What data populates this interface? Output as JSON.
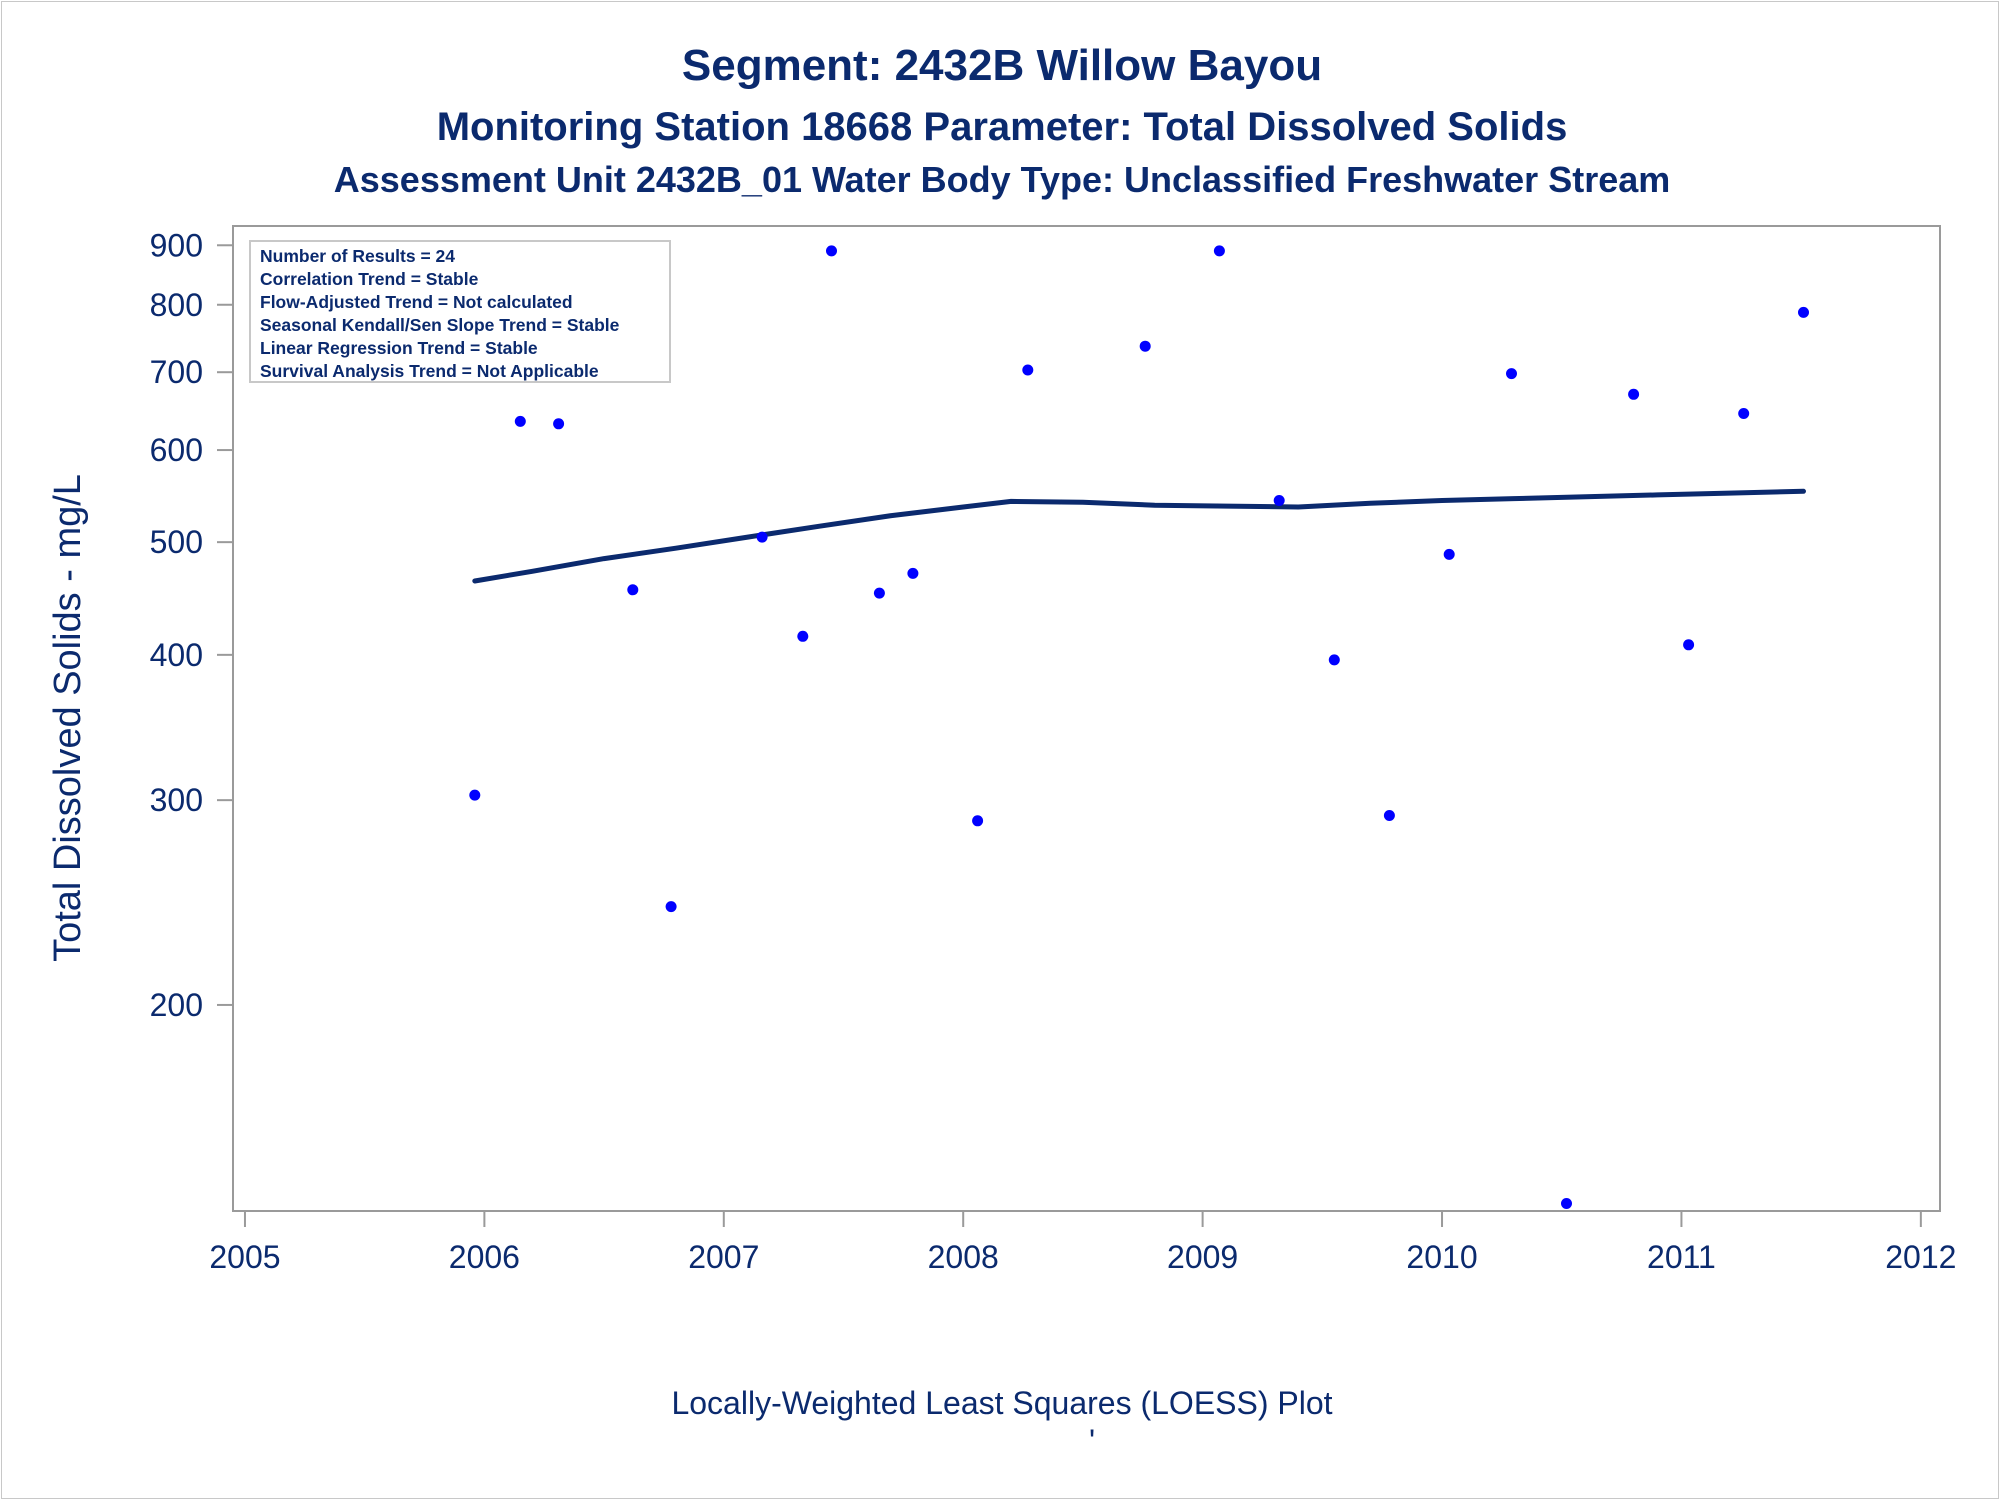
{
  "chart_data": {
    "type": "scatter",
    "title": "Segment: 2432B  Willow Bayou",
    "subtitle_1": "Monitoring Station 18668 Parameter: Total Dissolved Solids",
    "subtitle_2": "Assessment Unit 2432B_01   Water Body Type: Unclassified Freshwater Stream",
    "ylabel": "Total Dissolved Solids - mg/L",
    "xlabel": "",
    "footnote": "Locally-Weighted Least Squares (LOESS) Plot",
    "footnote_mark": "'",
    "y_scale": "log",
    "ylim": [
      133,
      935
    ],
    "xlim": [
      2004.95,
      2012.08
    ],
    "x_ticks": [
      2005,
      2006,
      2007,
      2008,
      2009,
      2010,
      2011,
      2012
    ],
    "y_ticks": [
      200,
      300,
      400,
      500,
      600,
      700,
      800,
      900
    ],
    "grid": false,
    "legend_placement": "top-left",
    "stats_box": [
      "Number of Results = 24",
      "Correlation Trend = Stable",
      "Flow-Adjusted Trend = Not calculated",
      "Seasonal Kendall/Sen Slope Trend = Stable",
      "Linear Regression Trend = Stable",
      "Survival Analysis Trend = Not Applicable"
    ],
    "series": [
      {
        "kind": "points",
        "color": "#0000ff",
        "x": [
          2005.96,
          2006.15,
          2006.31,
          2006.62,
          2006.78,
          2007.16,
          2007.33,
          2007.45,
          2007.65,
          2007.79,
          2008.06,
          2008.27,
          2008.76,
          2009.07,
          2009.32,
          2009.55,
          2009.78,
          2010.03,
          2010.29,
          2010.52,
          2010.8,
          2011.03,
          2011.26,
          2011.51
        ],
        "y": [
          303,
          635,
          632,
          455,
          243,
          505,
          415,
          890,
          452,
          470,
          288,
          703,
          737,
          890,
          543,
          396,
          291,
          488,
          698,
          135,
          670,
          408,
          645,
          788
        ]
      },
      {
        "kind": "line",
        "color": "#0b2a6e",
        "x": [
          2005.96,
          2006.2,
          2006.5,
          2006.8,
          2007.1,
          2007.4,
          2007.7,
          2008.0,
          2008.2,
          2008.5,
          2008.8,
          2009.1,
          2009.4,
          2009.7,
          2010.0,
          2010.3,
          2010.6,
          2010.9,
          2011.2,
          2011.51
        ],
        "y": [
          463,
          472,
          484,
          494,
          505,
          516,
          527,
          536,
          542,
          541,
          538,
          537,
          536,
          540,
          543,
          545,
          547,
          549,
          551,
          553
        ]
      }
    ]
  }
}
